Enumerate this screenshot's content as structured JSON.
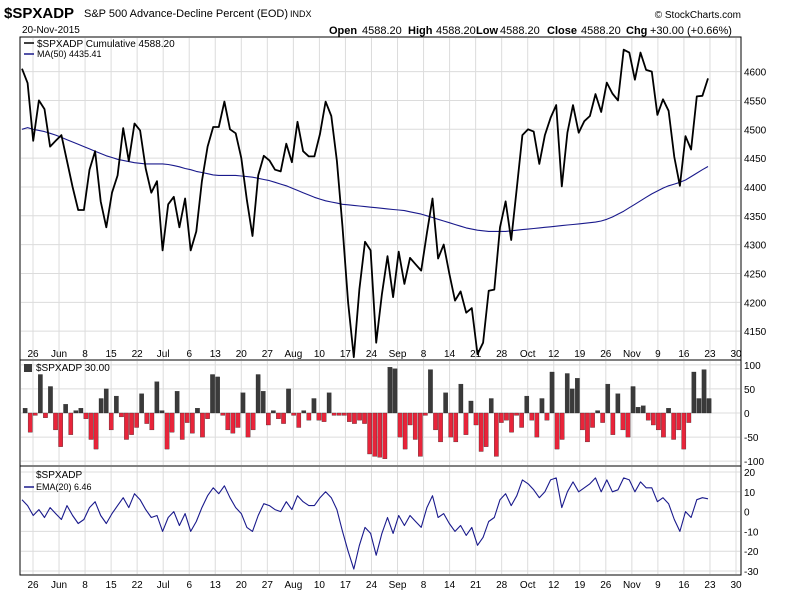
{
  "header": {
    "symbol": "$SPXADP",
    "description": "S&P 500 Advance-Decline Percent (EOD)",
    "exchange": "INDX",
    "watermark": "© StockCharts.com",
    "date": "20-Nov-2015",
    "open_label": "Open",
    "open_value": "4588.20",
    "high_label": "High",
    "high_value": "4588.20",
    "low_label": "Low",
    "low_value": "4588.20",
    "close_label": "Close",
    "close_value": "4588.20",
    "chg_label": "Chg",
    "chg_value": "+30.00 (+0.66%)"
  },
  "colors": {
    "price_line": "#000000",
    "ma_line": "#1a1a8c",
    "bar_positive": "#3a3a3a",
    "bar_negative": "#e8243a",
    "ema_line": "#1a1a8c"
  },
  "chart_data": [
    {
      "type": "line",
      "title": "$SPXADP Cumulative 4588.20",
      "legend": [
        "$SPXADP Cumulative 4588.20",
        "MA(50) 4435.41"
      ],
      "ylim": [
        4100,
        4660
      ],
      "y_ticks": [
        4150,
        4200,
        4250,
        4300,
        4350,
        4400,
        4450,
        4500,
        4550,
        4600
      ],
      "series": [
        {
          "name": "$SPXADP Cumulative 4588.20",
          "values": [
            4605,
            4580,
            4480,
            4550,
            4535,
            4470,
            4480,
            4490,
            4445,
            4400,
            4360,
            4360,
            4430,
            4462,
            4375,
            4330,
            4390,
            4420,
            4502,
            4445,
            4510,
            4498,
            4432,
            4390,
            4410,
            4290,
            4370,
            4383,
            4330,
            4380,
            4290,
            4323,
            4410,
            4470,
            4504,
            4504,
            4548,
            4500,
            4493,
            4450,
            4377,
            4315,
            4420,
            4454,
            4446,
            4430,
            4427,
            4475,
            4443,
            4513,
            4462,
            4453,
            4453,
            4492,
            4548,
            4523,
            4445,
            4331,
            4200,
            4105,
            4223,
            4305,
            4290,
            4130,
            4214,
            4280,
            4209,
            4288,
            4232,
            4277,
            4266,
            4255,
            4320,
            4380,
            4276,
            4300,
            4250,
            4203,
            4219,
            4182,
            4190,
            4110,
            4130,
            4220,
            4222,
            4330,
            4375,
            4308,
            4398,
            4490,
            4500,
            4496,
            4440,
            4490,
            4520,
            4542,
            4401,
            4494,
            4542,
            4494,
            4514,
            4523,
            4561,
            4530,
            4581,
            4562,
            4550,
            4638,
            4633,
            4586,
            4633,
            4603,
            4600,
            4525,
            4552,
            4532,
            4452,
            4402,
            4488,
            4465,
            4557,
            4558,
            4588.2
          ]
        },
        {
          "name": "MA(50) 4435.41",
          "values": [
            4500,
            4503,
            4500,
            4498,
            4496,
            4493,
            4490,
            4486,
            4482,
            4478,
            4474,
            4470,
            4466,
            4462,
            4458,
            4454,
            4451,
            4448,
            4446,
            4444,
            4442,
            4441,
            4440,
            4440,
            4440,
            4440,
            4439,
            4437,
            4435,
            4432,
            4430,
            4427,
            4425,
            4423,
            4421,
            4420,
            4420,
            4420,
            4420,
            4419,
            4418,
            4417,
            4415,
            4413,
            4411,
            4408,
            4405,
            4402,
            4398,
            4394,
            4390,
            4386,
            4382,
            4379,
            4376,
            4374,
            4372,
            4370,
            4369,
            4368,
            4367,
            4366,
            4365,
            4364,
            4363,
            4362,
            4361,
            4360,
            4359,
            4357,
            4355,
            4353,
            4350,
            4347,
            4344,
            4341,
            4338,
            4335,
            4332,
            4329,
            4327,
            4325,
            4324,
            4323,
            4323,
            4323,
            4323,
            4324,
            4325,
            4326,
            4327,
            4328,
            4329,
            4330,
            4331,
            4332,
            4333,
            4334,
            4335,
            4336,
            4337,
            4338,
            4339,
            4341,
            4344,
            4348,
            4353,
            4358,
            4364,
            4370,
            4376,
            4382,
            4388,
            4393,
            4398,
            4402,
            4405,
            4408,
            4412,
            4418,
            4424,
            4430,
            4435.41
          ]
        }
      ]
    },
    {
      "type": "bar",
      "title": "$SPXADP 30.00",
      "legend": [
        "$SPXADP 30.00"
      ],
      "ylim": [
        -100,
        100
      ],
      "y_ticks": [
        -100,
        -50,
        0,
        50,
        100
      ],
      "values": [
        10,
        -40,
        -5,
        80,
        -10,
        55,
        -35,
        -70,
        18,
        -45,
        5,
        10,
        -12,
        -55,
        -75,
        30,
        50,
        -35,
        35,
        -8,
        -55,
        -45,
        -30,
        40,
        -22,
        -35,
        65,
        5,
        -75,
        -40,
        45,
        -55,
        -20,
        -42,
        10,
        -50,
        -12,
        80,
        75,
        -5,
        -35,
        -42,
        -30,
        42,
        -50,
        -35,
        80,
        45,
        -25,
        5,
        -12,
        -22,
        50,
        -5,
        -30,
        5,
        -15,
        30,
        -15,
        -18,
        42,
        -5,
        -5,
        -5,
        -18,
        -22,
        -15,
        -22,
        -85,
        -90,
        -92,
        -95,
        95,
        92,
        -50,
        -75,
        -25,
        -55,
        -90,
        -5,
        90,
        -35,
        -60,
        42,
        -50,
        -60,
        60,
        -45,
        25,
        -25,
        -80,
        -70,
        30,
        -90,
        -20,
        -15,
        -40,
        -5,
        -30,
        35,
        -15,
        -50,
        30,
        -15,
        85,
        -75,
        -55,
        82,
        50,
        72,
        -35,
        -60,
        -30,
        5,
        -20,
        60,
        -45,
        40,
        -35,
        -50,
        55,
        12,
        15,
        -15,
        -25,
        -35,
        -50,
        10,
        -55,
        -35,
        -75,
        -20,
        85,
        30,
        90,
        30
      ]
    },
    {
      "type": "line",
      "title": "$SPXADP",
      "legend": [
        "$SPXADP",
        "EMA(20) 6.46"
      ],
      "ylim": [
        -32,
        23
      ],
      "y_ticks": [
        -30,
        -20,
        -10,
        0,
        10,
        20
      ],
      "series": [
        {
          "name": "EMA(20) 6.46",
          "values": [
            6,
            3,
            -2,
            1,
            -3,
            2,
            -1,
            -4,
            3,
            -2,
            -6,
            -4,
            2,
            5,
            -2,
            -6,
            -1,
            3,
            7,
            2,
            9,
            6,
            1,
            -3,
            -2,
            -10,
            -3,
            0,
            -7,
            -1,
            -10,
            -5,
            2,
            8,
            12,
            9,
            13,
            7,
            2,
            -1,
            -8,
            -10,
            -2,
            4,
            3,
            1,
            0,
            5,
            1,
            8,
            5,
            3,
            3,
            7,
            10,
            7,
            1,
            -10,
            -20,
            -29,
            -17,
            -8,
            -11,
            -22,
            -11,
            -3,
            -11,
            -2,
            -7,
            -2,
            -5,
            -8,
            2,
            8,
            -3,
            -1,
            -6,
            -10,
            -7,
            -12,
            -8,
            -17,
            -13,
            -5,
            -3,
            6,
            9,
            3,
            8,
            16,
            14,
            11,
            7,
            10,
            16,
            17,
            2,
            10,
            15,
            10,
            12,
            14,
            17,
            10,
            16,
            10,
            11,
            17,
            16,
            10,
            15,
            12,
            12,
            5,
            7,
            4,
            -4,
            -10,
            0,
            -3,
            6,
            7,
            6.46
          ]
        }
      ]
    }
  ],
  "x_axis": {
    "labels": [
      "26",
      "Jun",
      "8",
      "15",
      "22",
      "Jul",
      "6",
      "13",
      "20",
      "27",
      "Aug",
      "10",
      "17",
      "24",
      "Sep",
      "8",
      "14",
      "21",
      "28",
      "Oct",
      "12",
      "19",
      "26",
      "Nov",
      "9",
      "16",
      "23",
      "30"
    ]
  }
}
